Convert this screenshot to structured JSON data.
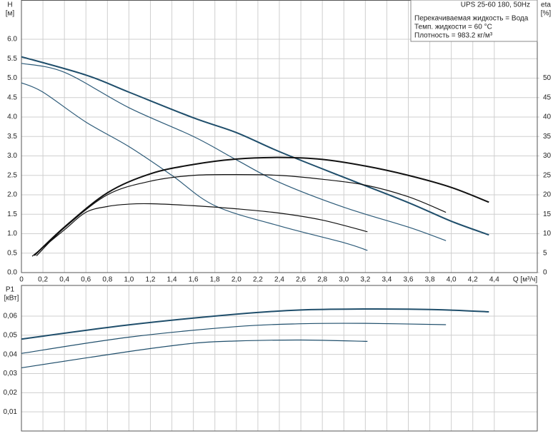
{
  "chart_data": [
    {
      "type": "line",
      "info": [
        "UPS 25-60 180, 50Hz",
        "Перекачиваемая жидкость = Вода",
        "Темп. жидкости = 60 °C",
        "Плотность = 983.2 кг/м³"
      ],
      "y_label": [
        "H",
        "[м]"
      ],
      "y2_label": [
        "eta",
        "[%]"
      ],
      "x_label": "Q [м³/ч]",
      "xlim": [
        0,
        4.8
      ],
      "xticks": [
        0,
        {
          "value": 0.2,
          "label": "0,2"
        },
        {
          "value": 0.4,
          "label": "0,4"
        },
        {
          "value": 0.6,
          "label": "0,6"
        },
        {
          "value": 0.8,
          "label": "0,8"
        },
        {
          "value": 1.0,
          "label": "1,0"
        },
        {
          "value": 1.2,
          "label": "1,2"
        },
        {
          "value": 1.4,
          "label": "1,4"
        },
        {
          "value": 1.6,
          "label": "1,6"
        },
        {
          "value": 1.8,
          "label": "1,8"
        },
        {
          "value": 2.0,
          "label": "2,0"
        },
        {
          "value": 2.2,
          "label": "2,2"
        },
        {
          "value": 2.4,
          "label": "2,4"
        },
        {
          "value": 2.6,
          "label": "2,6"
        },
        {
          "value": 2.8,
          "label": "2,8"
        },
        {
          "value": 3.0,
          "label": "3,0"
        },
        {
          "value": 3.2,
          "label": "3,2"
        },
        {
          "value": 3.4,
          "label": "3,4"
        },
        {
          "value": 3.6,
          "label": "3,6"
        },
        {
          "value": 3.8,
          "label": "3,8"
        },
        {
          "value": 4.0,
          "label": "4,0"
        },
        {
          "value": 4.2,
          "label": "4,2"
        },
        {
          "value": 4.4,
          "label": "4,4"
        }
      ],
      "ylim": [
        0,
        7
      ],
      "yticks": [
        {
          "value": 0,
          "label": "0.0"
        },
        0.5,
        {
          "value": 1,
          "label": "1.0"
        },
        1.5,
        {
          "value": 2,
          "label": "2.0"
        },
        2.5,
        {
          "value": 3,
          "label": "3.0"
        },
        3.5,
        {
          "value": 4,
          "label": "4.0"
        },
        4.5,
        {
          "value": 5,
          "label": "5.0"
        },
        5.5,
        {
          "value": 6,
          "label": "6.0"
        }
      ],
      "y2lim": [
        0,
        70
      ],
      "y2ticks": [
        0,
        5,
        10,
        15,
        20,
        25,
        30,
        35,
        40,
        45,
        50
      ],
      "grid": true,
      "series": [
        {
          "color": "#1f4e6b",
          "width": 2,
          "x": [
            0,
            0.6,
            1.0,
            1.6,
            2.0,
            2.4,
            3.0,
            3.6,
            4.0,
            4.35
          ],
          "values": [
            5.55,
            5.08,
            4.64,
            3.98,
            3.6,
            3.11,
            2.45,
            1.8,
            1.32,
            0.97
          ]
        },
        {
          "color": "#2c5a78",
          "width": 1.2,
          "x": [
            0,
            0.4,
            1.0,
            1.6,
            2.0,
            2.4,
            3.0,
            3.6,
            3.95
          ],
          "values": [
            5.38,
            5.15,
            4.24,
            3.5,
            2.9,
            2.32,
            1.68,
            1.17,
            0.82
          ]
        },
        {
          "color": "#2c5a78",
          "width": 1.2,
          "x": [
            0,
            0.2,
            0.6,
            1.0,
            1.4,
            1.8,
            2.4,
            3.0,
            3.22
          ],
          "values": [
            4.88,
            4.64,
            3.87,
            3.24,
            2.5,
            1.72,
            1.2,
            0.77,
            0.57
          ]
        },
        {
          "axis": "y2",
          "color": "#111111",
          "width": 2,
          "x": [
            0.12,
            0.4,
            0.8,
            1.2,
            1.6,
            2.0,
            2.4,
            2.8,
            3.2,
            3.6,
            4.0,
            4.35
          ],
          "values": [
            4.4,
            11.7,
            20.5,
            25.4,
            27.8,
            29.2,
            29.6,
            29.1,
            27.4,
            25,
            21.9,
            18.1
          ]
        },
        {
          "axis": "y2",
          "color": "#111111",
          "width": 1.2,
          "x": [
            0.14,
            0.4,
            0.8,
            1.2,
            1.6,
            2.0,
            2.4,
            2.8,
            3.2,
            3.6,
            3.95
          ],
          "values": [
            4.3,
            11.5,
            20,
            23.5,
            25,
            25.2,
            25,
            24,
            22.5,
            19.5,
            15.5
          ]
        },
        {
          "axis": "y2",
          "color": "#111111",
          "width": 1.2,
          "x": [
            0.1,
            0.4,
            0.6,
            0.8,
            1.0,
            1.2,
            1.6,
            2.0,
            2.4,
            2.8,
            3.22
          ],
          "values": [
            4.2,
            11,
            15.5,
            17,
            17.6,
            17.7,
            17.2,
            16.4,
            15.3,
            13.5,
            10.5
          ]
        }
      ]
    },
    {
      "type": "line",
      "y_label": [
        "P1",
        "[кВт]"
      ],
      "ylim": [
        0,
        0.076
      ],
      "yticks": [
        {
          "value": 0.01,
          "label": "0,01"
        },
        {
          "value": 0.02,
          "label": "0,02"
        },
        {
          "value": 0.03,
          "label": "0,03"
        },
        {
          "value": 0.04,
          "label": "0,04"
        },
        {
          "value": 0.05,
          "label": "0,05"
        },
        {
          "value": 0.06,
          "label": "0,06"
        }
      ],
      "grid": true,
      "series": [
        {
          "color": "#1f4e6b",
          "width": 2,
          "x": [
            0,
            1.0,
            2.0,
            2.6,
            3.2,
            3.6,
            4.0,
            4.35
          ],
          "values": [
            0.048,
            0.0554,
            0.061,
            0.0632,
            0.0637,
            0.0636,
            0.0631,
            0.0622
          ]
        },
        {
          "color": "#1f4e6b",
          "width": 1.2,
          "x": [
            0,
            1.0,
            2.0,
            2.6,
            3.2,
            3.95
          ],
          "values": [
            0.0405,
            0.049,
            0.0545,
            0.056,
            0.0562,
            0.0555
          ]
        },
        {
          "color": "#1f4e6b",
          "width": 1.2,
          "x": [
            0,
            1.0,
            1.6,
            2.0,
            2.6,
            3.22
          ],
          "values": [
            0.033,
            0.0415,
            0.0458,
            0.047,
            0.0475,
            0.0468
          ]
        }
      ]
    }
  ]
}
